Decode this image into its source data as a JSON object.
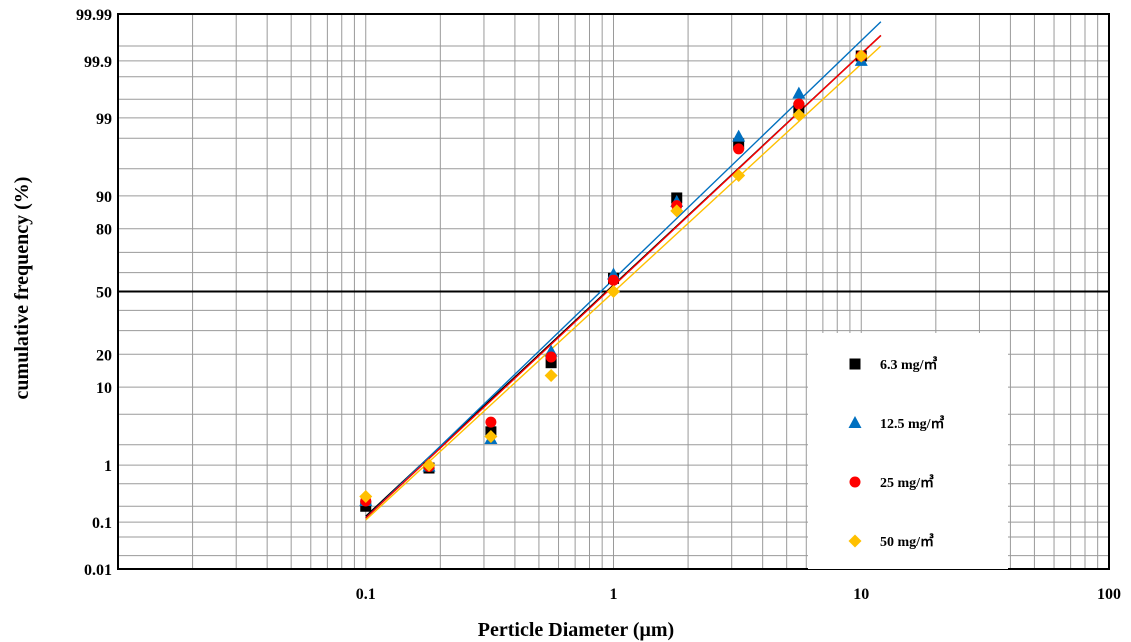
{
  "chart_data": {
    "type": "scatter",
    "xlabel": "Perticle  Diameter (μm)",
    "ylabel": "cumulative frequency (%)",
    "x_scale": "log",
    "xlim": [
      0.01,
      100
    ],
    "x_ticks": [
      {
        "value": 0.1,
        "label": "0.1"
      },
      {
        "value": 1,
        "label": "1"
      },
      {
        "value": 10,
        "label": "10"
      },
      {
        "value": 100,
        "label": "100"
      }
    ],
    "y_scale": "probability",
    "ylim": [
      0.01,
      99.99
    ],
    "y_ticks": [
      {
        "value": 0.01,
        "label": "0.01"
      },
      {
        "value": 0.1,
        "label": "0.1"
      },
      {
        "value": 1,
        "label": "1"
      },
      {
        "value": 10,
        "label": "10"
      },
      {
        "value": 20,
        "label": "20"
      },
      {
        "value": 50,
        "label": "50"
      },
      {
        "value": 80,
        "label": "80"
      },
      {
        "value": 90,
        "label": "90"
      },
      {
        "value": 99,
        "label": "99"
      },
      {
        "value": 99.9,
        "label": "99.9"
      },
      {
        "value": 99.99,
        "label": "99.99"
      }
    ],
    "y_gridlines": [
      0.01,
      0.02,
      0.05,
      0.1,
      0.2,
      0.5,
      1,
      2,
      5,
      10,
      20,
      30,
      40,
      50,
      60,
      70,
      80,
      90,
      95,
      98,
      99,
      99.5,
      99.8,
      99.9,
      99.95,
      99.99
    ],
    "reference_line_y": 50,
    "grid": true,
    "legend_position": "lower-right",
    "series": [
      {
        "name": "6.3 mg/㎥",
        "color": "#000000",
        "marker": "square",
        "x": [
          0.1,
          0.18,
          0.32,
          0.56,
          1.0,
          1.8,
          3.2,
          5.6,
          10
        ],
        "y": [
          0.2,
          0.9,
          3.0,
          17,
          57,
          89.5,
          97.6,
          99.3,
          99.92
        ],
        "fit_line": {
          "x": [
            0.1,
            12
          ],
          "y": [
            0.13,
            99.97
          ]
        }
      },
      {
        "name": "12.5 mg/㎥",
        "color": "#0070C0",
        "marker": "triangle",
        "x": [
          0.1,
          0.18,
          0.32,
          0.56,
          1.0,
          1.8,
          3.2,
          5.6,
          10
        ],
        "y": [
          0.25,
          0.95,
          2.4,
          21,
          59,
          88.5,
          98.1,
          99.6,
          99.9
        ],
        "fit_line": {
          "x": [
            0.1,
            12
          ],
          "y": [
            0.12,
            99.985
          ]
        }
      },
      {
        "name": "25 mg/㎥",
        "color": "#FF0000",
        "marker": "circle",
        "x": [
          0.1,
          0.18,
          0.32,
          0.56,
          1.0,
          1.8,
          3.2,
          5.6,
          10
        ],
        "y": [
          0.25,
          0.95,
          4.0,
          19,
          56,
          87.5,
          97.2,
          99.4,
          99.92
        ],
        "fit_line": {
          "x": [
            0.1,
            12
          ],
          "y": [
            0.12,
            99.97
          ]
        }
      },
      {
        "name": "50 mg/㎥",
        "color": "#FFC000",
        "marker": "diamond",
        "x": [
          0.1,
          0.18,
          0.32,
          0.56,
          1.0,
          1.8,
          3.2,
          5.6,
          10
        ],
        "y": [
          0.3,
          1.0,
          2.6,
          13,
          50,
          86,
          94,
          99.1,
          99.92
        ],
        "fit_line": {
          "x": [
            0.1,
            12
          ],
          "y": [
            0.11,
            99.95
          ]
        }
      }
    ]
  }
}
